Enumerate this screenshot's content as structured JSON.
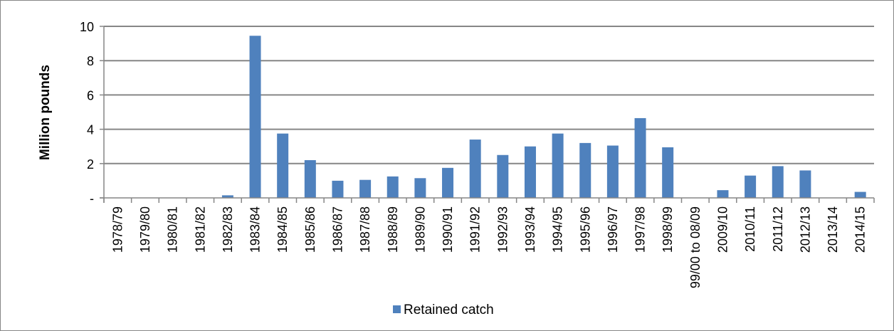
{
  "chart_data": {
    "type": "bar",
    "categories": [
      "1978/79",
      "1979/80",
      "1980/81",
      "1981/82",
      "1982/83",
      "1983/84",
      "1984/85",
      "1985/86",
      "1986/87",
      "1987/88",
      "1988/89",
      "1989/90",
      "1990/91",
      "1991/92",
      "1992/93",
      "1993/94",
      "1994/95",
      "1995/96",
      "1996/97",
      "1997/98",
      "1998/99",
      "99/00 to 08/09",
      "2009/10",
      "2010/11",
      "2011/12",
      "2012/13",
      "2013/14",
      "2014/15"
    ],
    "series": [
      {
        "name": "Retained catch",
        "color": "#4F81BD",
        "values": [
          0,
          0,
          0,
          0,
          0.15,
          9.45,
          3.75,
          2.2,
          1.0,
          1.05,
          1.25,
          1.15,
          1.75,
          3.4,
          2.5,
          3.0,
          3.75,
          3.2,
          3.05,
          4.65,
          2.95,
          0,
          0.45,
          1.3,
          1.85,
          1.6,
          0,
          0.35
        ]
      }
    ],
    "ylabel": "Million pounds",
    "ylim": [
      0,
      10
    ],
    "yticks": [
      0,
      2,
      4,
      6,
      8,
      10
    ],
    "ytick_labels": [
      "-",
      "2",
      "4",
      "6",
      "8",
      "10"
    ],
    "grid": true,
    "legend_position": "bottom"
  }
}
